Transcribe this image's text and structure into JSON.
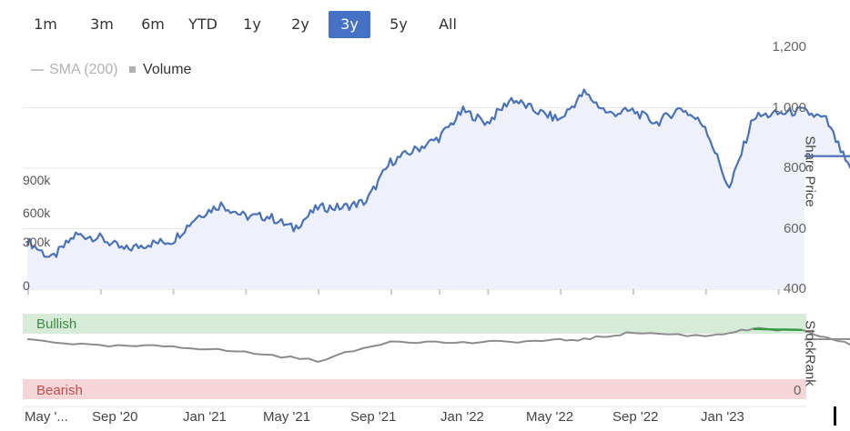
{
  "range_selector": {
    "buttons": [
      "1m",
      "3m",
      "6m",
      "YTD",
      "1y",
      "2y",
      "3y",
      "5y",
      "All"
    ],
    "active": "3y"
  },
  "legend": {
    "sma_label": "SMA (200)",
    "volume_label": "Volume"
  },
  "stockrank": {
    "bullish_label": "Bullish",
    "bearish_label": "Bearish",
    "zero_label": "0",
    "axis_title": "StockRank"
  },
  "colors": {
    "price_line": "#4a72b5",
    "area_fill": "#eef1f9",
    "volume_bars": "#cccccc",
    "rank_line": "#8c8c8c",
    "rank_bull_line": "#2e9a3e",
    "bullish_band": "#d7ebd9",
    "bearish_band": "#f6d5d9",
    "active_button": "#4572c4"
  },
  "chart_data": {
    "type": "line",
    "title": "",
    "xlabel": "",
    "ylabel": "Share Price",
    "y_ticks": [
      "400",
      "600",
      "800",
      "1,000",
      "1,200"
    ],
    "ylim": [
      400,
      1200
    ],
    "x_ticks": [
      "May '...",
      "Sep '20",
      "Jan '21",
      "May '21",
      "Sep '21",
      "Jan '22",
      "May '22",
      "Sep '22",
      "Jan '23"
    ],
    "volume_ticks": [
      "0",
      "300k",
      "600k",
      "900k"
    ],
    "grid": true,
    "series": [
      {
        "name": "Share Price",
        "x": [
          "2020-05",
          "2020-06",
          "2020-07",
          "2020-08",
          "2020-09",
          "2020-10",
          "2020-11",
          "2020-12",
          "2021-01",
          "2021-02",
          "2021-03",
          "2021-04",
          "2021-05",
          "2021-06",
          "2021-07",
          "2021-08",
          "2021-09",
          "2021-10",
          "2021-11",
          "2021-12",
          "2022-01",
          "2022-02",
          "2022-03",
          "2022-04",
          "2022-05",
          "2022-06",
          "2022-07",
          "2022-08",
          "2022-09",
          "2022-10",
          "2022-11",
          "2022-12",
          "2023-01",
          "2023-02",
          "2023-03",
          "2023-04"
        ],
        "values": [
          560,
          500,
          580,
          570,
          530,
          550,
          560,
          640,
          680,
          640,
          640,
          600,
          670,
          670,
          690,
          820,
          860,
          900,
          990,
          950,
          1030,
          990,
          960,
          1050,
          980,
          990,
          950,
          1000,
          940,
          730,
          970,
          980,
          990,
          960,
          790,
          840
        ]
      },
      {
        "name": "Volume",
        "x": [
          "2020-05",
          "2020-08",
          "2020-11",
          "2021-02",
          "2021-05",
          "2021-08",
          "2021-10",
          "2021-12",
          "2022-03",
          "2022-06",
          "2022-09",
          "2022-12",
          "2023-03"
        ],
        "values": [
          300000,
          50000,
          100000,
          140000,
          60000,
          170000,
          270000,
          700000,
          150000,
          60000,
          70000,
          140000,
          90000
        ]
      },
      {
        "name": "StockRank",
        "x": [
          "2020-05",
          "2020-08",
          "2020-11",
          "2021-02",
          "2021-05",
          "2021-08",
          "2021-11",
          "2022-02",
          "2022-04",
          "2022-06",
          "2022-09",
          "2022-11",
          "2023-01",
          "2023-03",
          "2023-04"
        ],
        "values": [
          70,
          62,
          62,
          55,
          45,
          68,
          66,
          68,
          70,
          78,
          74,
          82,
          80,
          64,
          70
        ]
      }
    ]
  }
}
